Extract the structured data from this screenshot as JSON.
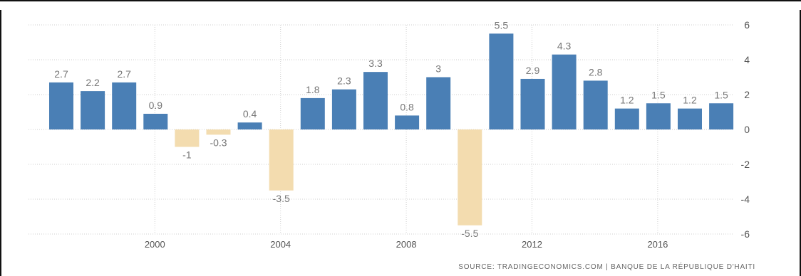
{
  "chart_data": {
    "type": "bar",
    "title": "",
    "xlabel": "",
    "ylabel": "",
    "ylim": [
      -6,
      6
    ],
    "grid": true,
    "yticks": [
      6,
      4,
      2,
      0,
      -2,
      -4,
      -6
    ],
    "xticks": [
      2000,
      2004,
      2008,
      2012,
      2016
    ],
    "categories": [
      1997,
      1998,
      1999,
      2000,
      2001,
      2002,
      2003,
      2004,
      2005,
      2006,
      2007,
      2008,
      2009,
      2010,
      2011,
      2012,
      2013,
      2014,
      2015,
      2016,
      2017,
      2018
    ],
    "values": [
      2.7,
      2.2,
      2.7,
      0.9,
      -1,
      -0.3,
      0.4,
      -3.5,
      1.8,
      2.3,
      3.3,
      0.8,
      3,
      -5.5,
      5.5,
      2.9,
      4.3,
      2.8,
      1.2,
      1.5,
      1.2,
      1.5
    ],
    "data_labels": [
      "2.7",
      "2.2",
      "2.7",
      "0.9",
      "-1",
      "-0.3",
      "0.4",
      "-3.5",
      "1.8",
      "2.3",
      "3.3",
      "0.8",
      "3",
      "-5.5",
      "5.5",
      "2.9",
      "4.3",
      "2.8",
      "1.2",
      "1.5",
      "1.2",
      "1.5"
    ],
    "colors": {
      "positive": "#4a7fb5",
      "negative": "#f3dcaf"
    },
    "source": "SOURCE: TRADINGECONOMICS.COM  |  BANQUE DE LA RÉPUBLIQUE D'HAITI"
  }
}
